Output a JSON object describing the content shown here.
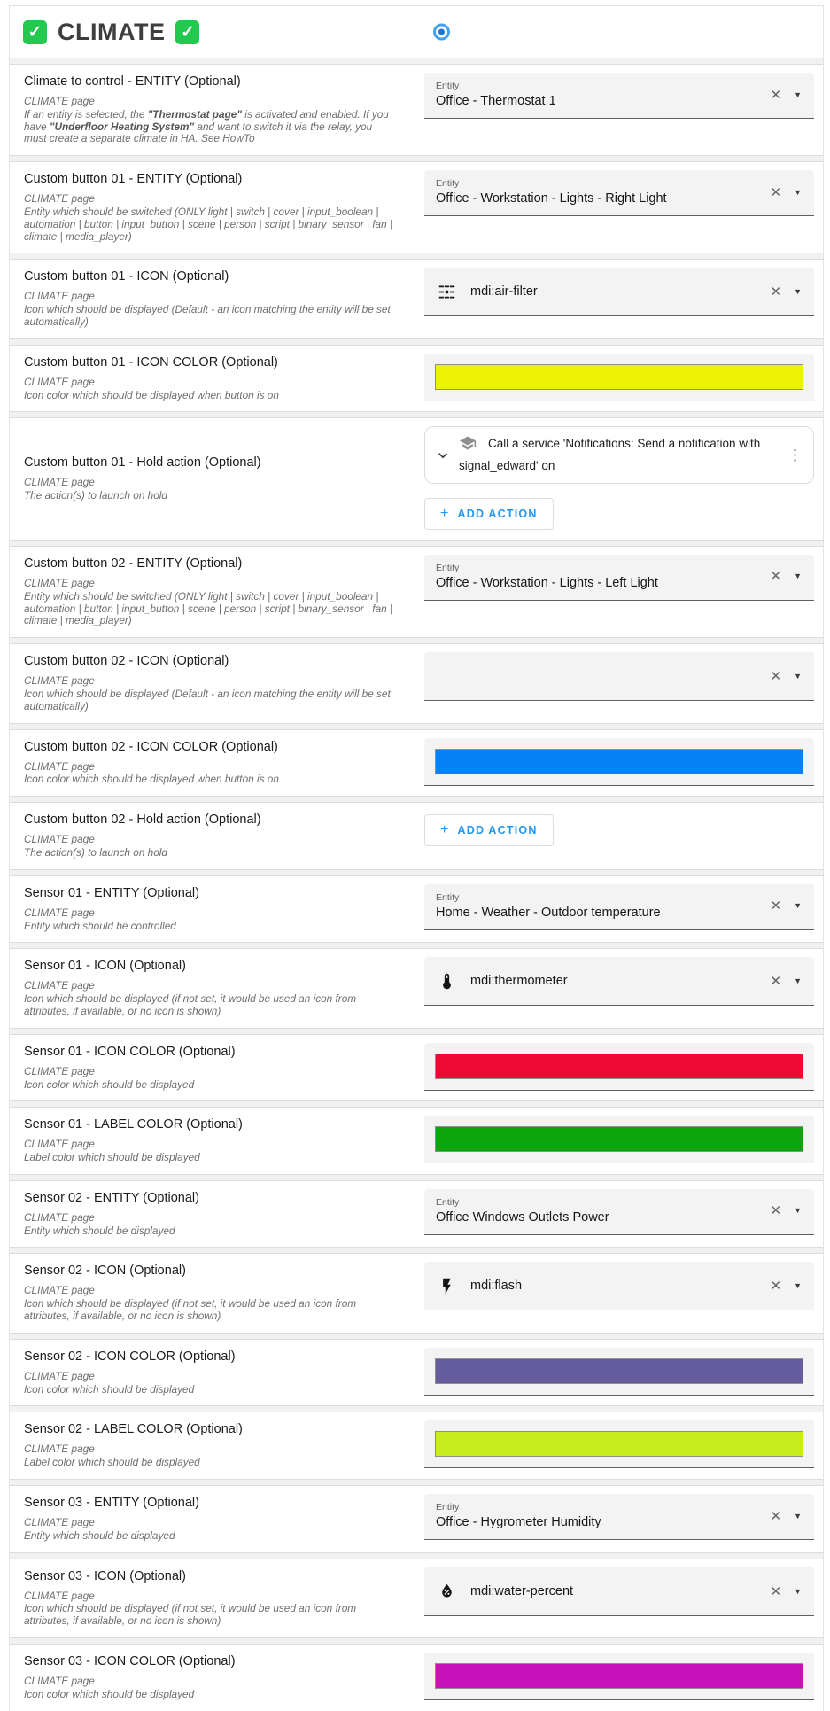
{
  "header": {
    "title": "CLIMATE",
    "check_glyph": "✓",
    "radio_selected": true
  },
  "ui": {
    "entity_field_label": "Entity",
    "add_action_label": "ADD ACTION",
    "plus": "+",
    "clear_glyph": "✕",
    "caret_glyph": "▼",
    "kebab_glyph": "⋮"
  },
  "rows": [
    {
      "title": "Climate to control - ENTITY (Optional)",
      "page": "CLIMATE page",
      "desc": [
        {
          "t": "If an entity is selected, the ",
          "b": false
        },
        {
          "t": "\"Thermostat page\"",
          "b": true
        },
        {
          "t": " is activated and enabled. If you have ",
          "b": false
        },
        {
          "t": "\"Underfloor Heating System\"",
          "b": true
        },
        {
          "t": " and want to switch it via the relay, you must create a separate climate in HA. See HowTo",
          "b": false
        }
      ],
      "control": {
        "kind": "entity",
        "value": "Office - Thermostat 1"
      }
    },
    {
      "title": "Custom button 01 - ENTITY (Optional)",
      "page": "CLIMATE page",
      "desc": "Entity which should be switched (ONLY light | switch | cover | input_boolean | automation | button | input_button | scene | person | script | binary_sensor | fan | climate | media_player)",
      "control": {
        "kind": "entity",
        "value": "Office - Workstation - Lights - Right Light"
      }
    },
    {
      "title": "Custom button 01 - ICON (Optional)",
      "page": "CLIMATE page",
      "desc": "Icon which should be displayed (Default - an icon matching the entity will be set automatically)",
      "control": {
        "kind": "icon",
        "glyph": "air-filter-icon",
        "value": "mdi:air-filter"
      }
    },
    {
      "title": "Custom button 01 - ICON COLOR (Optional)",
      "page": "CLIMATE page",
      "desc": "Icon color which should be displayed when button is on",
      "control": {
        "kind": "color",
        "color": "#EBF203"
      }
    },
    {
      "title": "Custom button 01 - Hold action (Optional)",
      "page": "CLIMATE page",
      "desc": "The action(s) to launch on hold",
      "control": {
        "kind": "actions",
        "card": {
          "icon": "service-icon",
          "text": "Call a service 'Notifications: Send a notification with signal_edward' on"
        }
      }
    },
    {
      "title": "Custom button 02 - ENTITY (Optional)",
      "page": "CLIMATE page",
      "desc": "Entity which should be switched (ONLY light | switch | cover | input_boolean | automation | button | input_button | scene | person | script | binary_sensor | fan | climate | media_player)",
      "control": {
        "kind": "entity",
        "value": "Office - Workstation - Lights - Left Light"
      }
    },
    {
      "title": "Custom button 02 - ICON (Optional)",
      "page": "CLIMATE page",
      "desc": "Icon which should be displayed (Default - an icon matching the entity will be set automatically)",
      "control": {
        "kind": "icon",
        "glyph": null,
        "value": ""
      }
    },
    {
      "title": "Custom button 02 - ICON COLOR (Optional)",
      "page": "CLIMATE page",
      "desc": "Icon color which should be displayed when button is on",
      "control": {
        "kind": "color",
        "color": "#0481F2"
      }
    },
    {
      "title": "Custom button 02 - Hold action (Optional)",
      "page": "CLIMATE page",
      "desc": "The action(s) to launch on hold",
      "control": {
        "kind": "actions",
        "card": null
      }
    },
    {
      "title": "Sensor 01 - ENTITY (Optional)",
      "page": "CLIMATE page",
      "desc": "Entity which should be controlled",
      "control": {
        "kind": "entity",
        "value": "Home - Weather - Outdoor temperature"
      }
    },
    {
      "title": "Sensor 01 - ICON (Optional)",
      "page": "CLIMATE page",
      "desc": "Icon which should be displayed (if not set, it would be used an icon from attributes, if available, or no icon is shown)",
      "control": {
        "kind": "icon",
        "glyph": "thermometer-icon",
        "value": "mdi:thermometer"
      }
    },
    {
      "title": "Sensor 01 - ICON COLOR (Optional)",
      "page": "CLIMATE page",
      "desc": "Icon color which should be displayed",
      "control": {
        "kind": "color",
        "color": "#EC0A35"
      }
    },
    {
      "title": "Sensor 01 - LABEL COLOR (Optional)",
      "page": "CLIMATE page",
      "desc": "Label color which should be displayed",
      "control": {
        "kind": "color",
        "color": "#0CA50C"
      }
    },
    {
      "title": "Sensor 02 - ENTITY (Optional)",
      "page": "CLIMATE page",
      "desc": "Entity which should be displayed",
      "control": {
        "kind": "entity",
        "value": "Office Windows Outlets Power"
      }
    },
    {
      "title": "Sensor 02 - ICON (Optional)",
      "page": "CLIMATE page",
      "desc": "Icon which should be displayed (if not set, it would be used an icon from attributes, if available, or no icon is shown)",
      "control": {
        "kind": "icon",
        "glyph": "flash-icon",
        "value": "mdi:flash"
      }
    },
    {
      "title": "Sensor 02 - ICON COLOR (Optional)",
      "page": "CLIMATE page",
      "desc": "Icon color which should be displayed",
      "control": {
        "kind": "color",
        "color": "#655C9E"
      }
    },
    {
      "title": "Sensor 02 - LABEL COLOR (Optional)",
      "page": "CLIMATE page",
      "desc": "Label color which should be displayed",
      "control": {
        "kind": "color",
        "color": "#C9EC1D"
      }
    },
    {
      "title": "Sensor 03 - ENTITY (Optional)",
      "page": "CLIMATE page",
      "desc": "Entity which should be displayed",
      "control": {
        "kind": "entity",
        "value": "Office - Hygrometer Humidity"
      }
    },
    {
      "title": "Sensor 03 - ICON (Optional)",
      "page": "CLIMATE page",
      "desc": "Icon which should be displayed (if not set, it would be used an icon from attributes, if available, or no icon is shown)",
      "control": {
        "kind": "icon",
        "glyph": "water-percent-icon",
        "value": "mdi:water-percent"
      }
    },
    {
      "title": "Sensor 03 - ICON COLOR (Optional)",
      "page": "CLIMATE page",
      "desc": "Icon color which should be displayed",
      "control": {
        "kind": "color",
        "color": "#C813BC"
      }
    }
  ]
}
